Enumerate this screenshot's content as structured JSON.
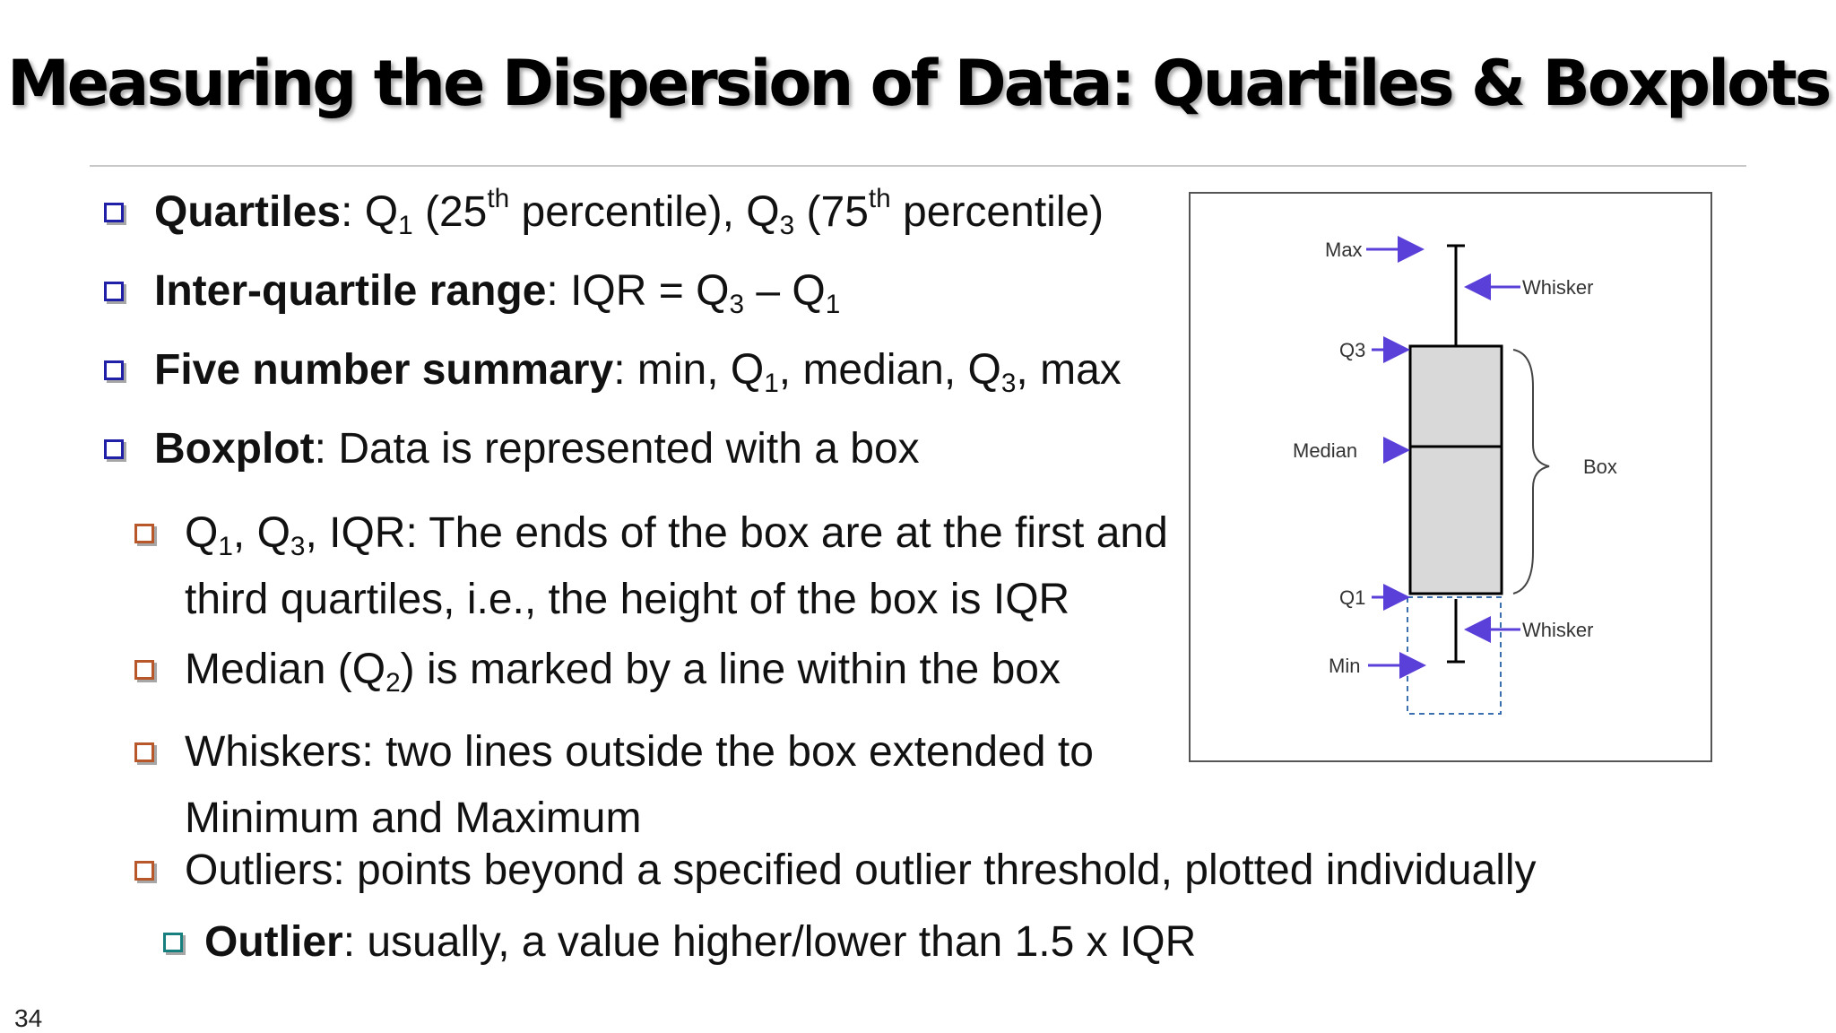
{
  "slide": {
    "title": "Measuring the Dispersion of Data: Quartiles & Boxplots",
    "page_number": "34"
  },
  "bullets": {
    "quartiles": {
      "term": "Quartiles",
      "sep": ": ",
      "q1": "Q",
      "q1_sub": "1",
      "p25_a": " (25",
      "p25_sup": "th",
      "p25_b": " percentile), ",
      "q3": "Q",
      "q3_sub": "3",
      "p75_a": " (75",
      "p75_sup": "th",
      "p75_b": " percentile)"
    },
    "iqr": {
      "term": "Inter-quartile range",
      "sep": ": ",
      "a": "IQR = Q",
      "sub_a": "3",
      "b": " – Q",
      "sub_b": "1"
    },
    "five": {
      "term": "Five number summary",
      "sep": ": ",
      "a": "min, Q",
      "sub_a": "1",
      "b": ", median, Q",
      "sub_b": "3",
      "c": ", max"
    },
    "boxplot": {
      "term": "Boxplot",
      "sep": ": ",
      "text": "Data is represented with a box"
    },
    "ends": {
      "a": "Q",
      "sub_a": "1",
      "b": ", Q",
      "sub_b": "3",
      "c": ", IQR:  The ends of the box are at the first and",
      "line2": "third quartiles, i.e., the height of the box is IQR"
    },
    "median": {
      "a": "Median (Q",
      "sub_a": "2",
      "b": ") is marked by a line within the box"
    },
    "whiskers": {
      "line1": "Whiskers: two lines outside the box extended to",
      "line2": "Minimum and Maximum"
    },
    "outliers": {
      "text": "Outliers: points beyond a specified outlier threshold, plotted individually"
    },
    "outlier_def": {
      "term": "Outlier",
      "sep": ": ",
      "text": "usually, a value higher/lower than 1.5 x IQR"
    }
  },
  "diagram": {
    "labels": {
      "max": "Max",
      "q3": "Q3",
      "median": "Median",
      "q1": "Q1",
      "min": "Min",
      "whisker_top": "Whisker",
      "whisker_bottom": "Whisker",
      "box": "Box"
    },
    "colors": {
      "arrow": "#5a3fd8",
      "box_fill": "#d9d9d9",
      "dashed": "#3a6fb0"
    }
  },
  "colors": {
    "level1_bullet": "#1f1fa8",
    "level2_bullet": "#b8582a",
    "level3_bullet": "#17807e"
  }
}
